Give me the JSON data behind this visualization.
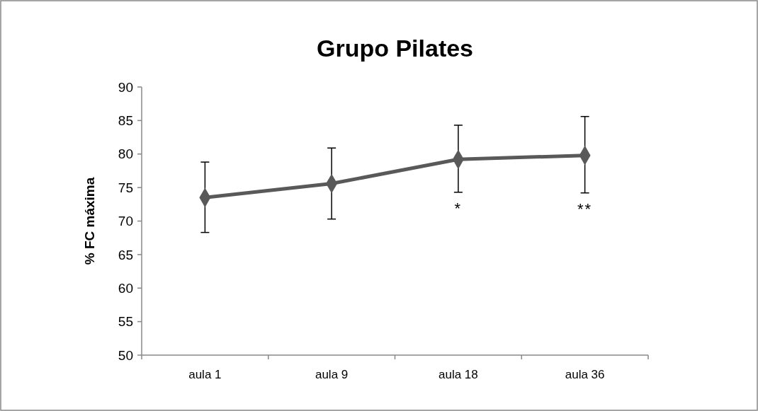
{
  "chart_data": {
    "type": "line",
    "title": "Grupo Pilates",
    "ylabel": "% FC máxima",
    "categories": [
      "aula 1",
      "aula 9",
      "aula 18",
      "aula 36"
    ],
    "series": [
      {
        "color": "#595959",
        "values": [
          73.5,
          75.6,
          79.2,
          79.8
        ],
        "errors": [
          [
            68.3,
            78.8
          ],
          [
            70.3,
            80.9
          ],
          [
            74.3,
            84.3
          ],
          [
            74.2,
            85.6
          ]
        ]
      }
    ],
    "annotations": [
      "*",
      "**"
    ],
    "ylim": [
      50,
      90
    ],
    "yticks": [
      50,
      55,
      60,
      65,
      70,
      75,
      80,
      85,
      90
    ],
    "grid": false,
    "marker": "diamond",
    "line_style": "solid"
  }
}
